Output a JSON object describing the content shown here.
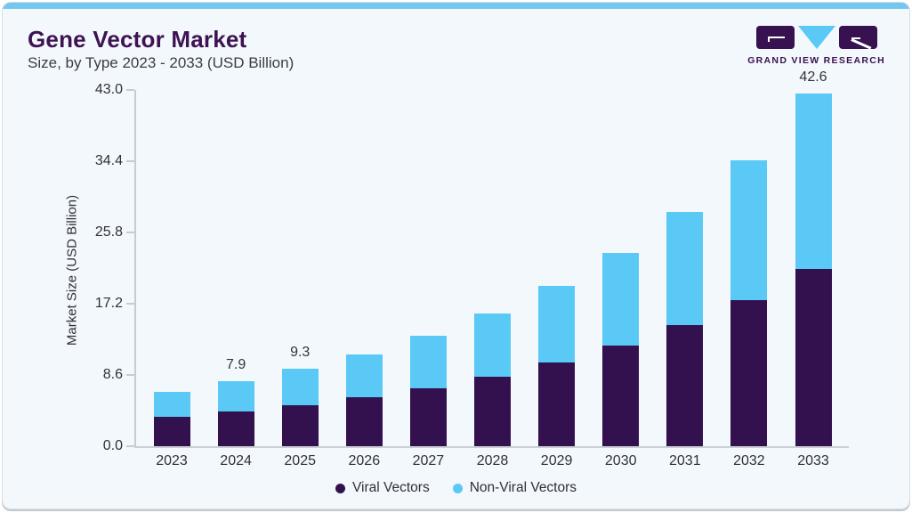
{
  "page": {
    "background": "#FFFFFF",
    "card_background": "#F2F8FB",
    "top_strip_color": "#74C8F0"
  },
  "header": {
    "title": "Gene Vector Market",
    "subtitle": "Size, by Type 2023 - 2033 (USD Billion)",
    "title_color": "#3F1254"
  },
  "logo": {
    "caption": "GRAND VIEW RESEARCH",
    "purple": "#381150",
    "blue": "#5BC9F6"
  },
  "chart_data": {
    "type": "bar",
    "stacked": true,
    "title": "Gene Vector Market Size, by Type 2023 - 2033 (USD Billion)",
    "ylabel": "Market Size (USD Billion)",
    "xlabel": "",
    "ylim": [
      0,
      43.0
    ],
    "ytick_values": [
      0,
      8.6,
      17.2,
      25.8,
      34.4,
      43.0
    ],
    "ytick_labels": [
      "0.0",
      "8.6",
      "17.2",
      "25.8",
      "34.4",
      "43.0"
    ],
    "grid": false,
    "legend_position": "bottom",
    "categories": [
      "2023",
      "2024",
      "2025",
      "2026",
      "2027",
      "2028",
      "2029",
      "2030",
      "2031",
      "2032",
      "2033"
    ],
    "series": [
      {
        "name": "Viral Vectors",
        "color": "#33114E",
        "values": [
          3.5,
          4.2,
          4.9,
          5.9,
          7.0,
          8.4,
          10.1,
          12.1,
          14.6,
          17.6,
          21.4
        ]
      },
      {
        "name": "Non-Viral Vectors",
        "color": "#5BC9F6",
        "values": [
          3.1,
          3.7,
          4.4,
          5.2,
          6.3,
          7.6,
          9.2,
          11.2,
          13.7,
          16.9,
          21.2
        ]
      }
    ],
    "bar_total_labels": [
      "",
      "7.9",
      "9.3",
      "",
      "",
      "",
      "",
      "",
      "",
      "",
      "42.6"
    ]
  }
}
